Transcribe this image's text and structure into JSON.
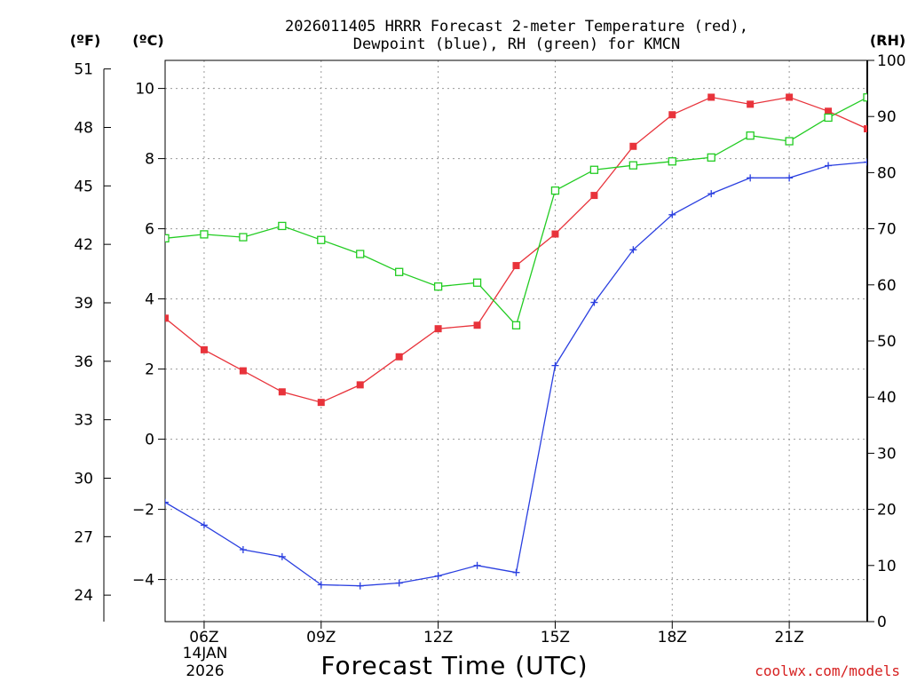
{
  "chart_data": {
    "type": "line",
    "title_line1": "2026011405 HRRR Forecast 2-meter Temperature (red),",
    "title_line2": "Dewpoint (blue), RH (green) for KMCN",
    "xlabel": "Forecast Time (UTC)",
    "credit": "coolwx.com/models",
    "unit_f": "(ºF)",
    "unit_c": "(ºC)",
    "unit_rh": "(RH)",
    "x_hours": [
      5,
      6,
      7,
      8,
      9,
      10,
      11,
      12,
      13,
      14,
      15,
      16,
      17,
      18,
      19,
      20,
      21,
      22,
      23
    ],
    "xlim": [
      5,
      23
    ],
    "x_ticks": [
      {
        "hour": 6,
        "label": "06Z"
      },
      {
        "hour": 9,
        "label": "09Z"
      },
      {
        "hour": 12,
        "label": "12Z"
      },
      {
        "hour": 15,
        "label": "15Z"
      },
      {
        "hour": 18,
        "label": "18Z"
      },
      {
        "hour": 21,
        "label": "21Z"
      }
    ],
    "date_line1": "14JAN",
    "date_line2": "2026",
    "celsius_axis": {
      "range": [
        -5.2,
        10.8
      ],
      "ticks": [
        "10",
        "8",
        "6",
        "4",
        "2",
        "0",
        "−2",
        "−4"
      ],
      "tick_values": [
        10,
        8,
        6,
        4,
        2,
        0,
        -2,
        -4
      ]
    },
    "fahrenheit_axis": {
      "range": [
        22.64,
        51.44
      ],
      "ticks": [
        "51",
        "48",
        "45",
        "42",
        "39",
        "36",
        "33",
        "30",
        "27",
        "24"
      ],
      "tick_values": [
        51,
        48,
        45,
        42,
        39,
        36,
        33,
        30,
        27,
        24
      ]
    },
    "rh_axis": {
      "range": [
        0,
        100
      ],
      "ticks": [
        "100",
        "90",
        "80",
        "70",
        "60",
        "50",
        "40",
        "30",
        "20",
        "10",
        "0"
      ],
      "tick_values": [
        100,
        90,
        80,
        70,
        60,
        50,
        40,
        30,
        20,
        10,
        0
      ]
    },
    "series": [
      {
        "name": "Temperature",
        "color": "#e8333b",
        "marker": "filled-square",
        "axis": "celsius",
        "values": [
          3.45,
          2.55,
          1.95,
          1.35,
          1.05,
          1.55,
          2.35,
          3.15,
          3.25,
          4.95,
          5.85,
          6.95,
          8.35,
          9.25,
          9.75,
          9.55,
          9.75,
          9.35,
          8.85
        ]
      },
      {
        "name": "Dewpoint",
        "color": "#2a3fe0",
        "marker": "plus",
        "axis": "celsius",
        "values": [
          -1.8,
          -2.45,
          -3.15,
          -3.35,
          -4.15,
          -4.18,
          -4.1,
          -3.9,
          -3.6,
          -3.8,
          2.1,
          3.9,
          5.4,
          6.4,
          7.0,
          7.45,
          7.45,
          7.8,
          7.9
        ]
      },
      {
        "name": "RH",
        "color": "#22cc22",
        "marker": "open-square",
        "axis": "rh",
        "values": [
          68.3,
          69.0,
          68.5,
          70.5,
          68.0,
          65.5,
          62.3,
          59.7,
          60.4,
          52.8,
          76.8,
          80.5,
          81.3,
          82.0,
          82.7,
          86.6,
          85.6,
          89.8,
          93.4
        ]
      }
    ]
  }
}
